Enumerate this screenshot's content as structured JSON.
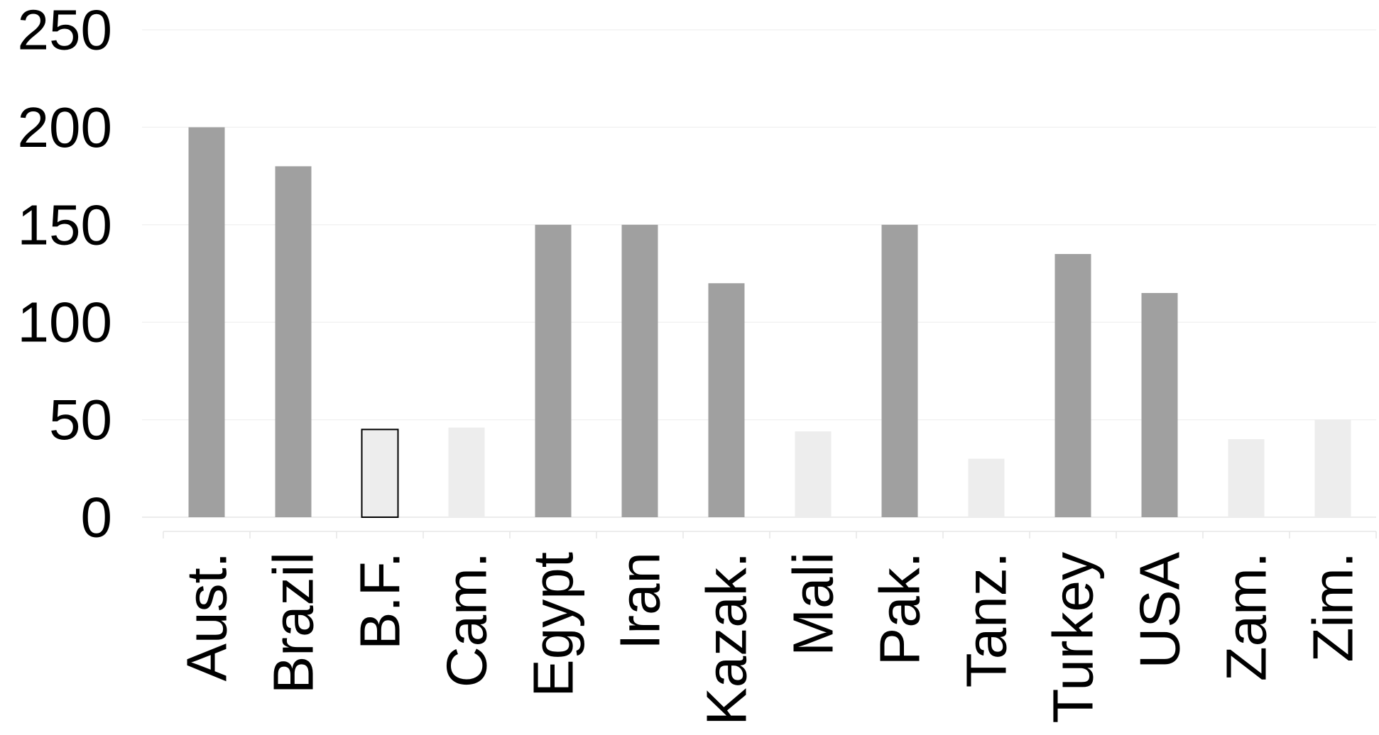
{
  "chart_data": {
    "type": "bar",
    "title": "",
    "xlabel": "",
    "ylabel": "",
    "ylim": [
      0,
      250
    ],
    "yticks": [
      0,
      50,
      100,
      150,
      200,
      250
    ],
    "categories": [
      "Aust.",
      "Brazil",
      "B.F.",
      "Cam.",
      "Egypt",
      "Iran",
      "Kazak.",
      "Mali",
      "Pak.",
      "Tanz.",
      "Turkey",
      "USA",
      "Zam.",
      "Zim."
    ],
    "values": [
      200,
      180,
      45,
      46,
      150,
      150,
      120,
      44,
      150,
      30,
      135,
      115,
      40,
      50
    ],
    "bar_styles": [
      "dark",
      "dark",
      "outlined",
      "light",
      "dark",
      "dark",
      "dark",
      "light",
      "dark",
      "light",
      "dark",
      "dark",
      "light",
      "light"
    ],
    "grid": true,
    "legend": "none"
  },
  "colors": {
    "dark": "#a0a0a0",
    "light": "#ededed",
    "outlined_fill": "#ededed",
    "outlined_stroke": "#000000",
    "grid": "#f2f2f2",
    "axis": "#e6e6e6",
    "text": "#000000"
  }
}
